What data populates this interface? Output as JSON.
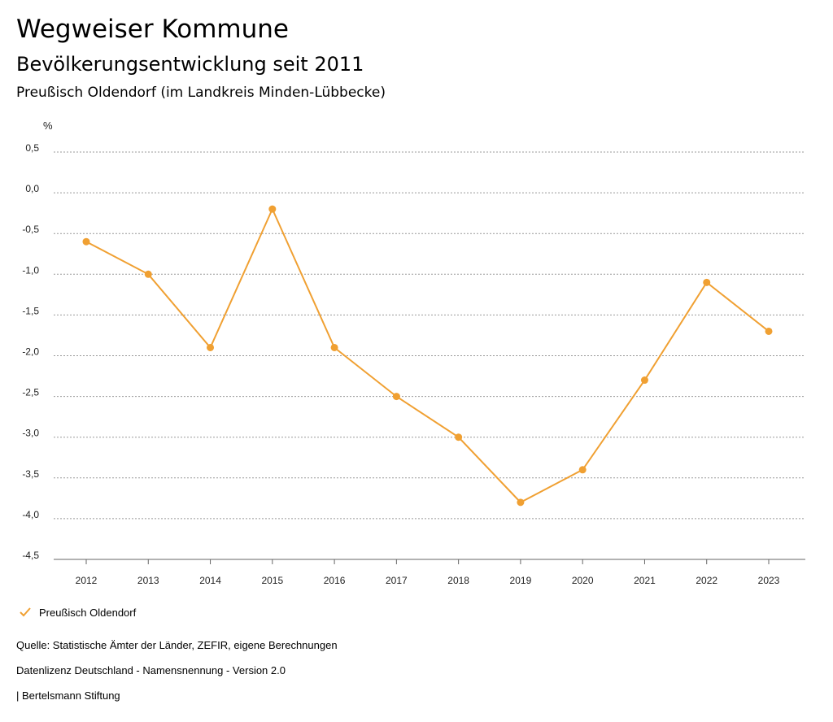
{
  "header": {
    "title": "Wegweiser Kommune",
    "subtitle": "Bevölkerungsentwicklung seit 2011",
    "region": "Preußisch Oldendorf (im Landkreis Minden-Lübbecke)"
  },
  "chart_data": {
    "type": "line",
    "ylabel": "%",
    "ylim": [
      -4.5,
      0.5
    ],
    "yticks": [
      0.5,
      0.0,
      -0.5,
      -1.0,
      -1.5,
      -2.0,
      -2.5,
      -3.0,
      -3.5,
      -4.0,
      -4.5
    ],
    "ytick_labels": [
      "0,5",
      "0,0",
      "-0,5",
      "-1,0",
      "-1,5",
      "-2,0",
      "-2,5",
      "-3,0",
      "-3,5",
      "-4,0",
      "-4,5"
    ],
    "categories": [
      "2012",
      "2013",
      "2014",
      "2015",
      "2016",
      "2017",
      "2018",
      "2019",
      "2020",
      "2021",
      "2022",
      "2023"
    ],
    "series": [
      {
        "name": "Preußisch Oldendorf",
        "values": [
          -0.6,
          -1.0,
          -1.9,
          -0.2,
          -1.9,
          -2.5,
          -3.0,
          -3.8,
          -3.4,
          -2.3,
          -1.1,
          -1.7
        ]
      }
    ],
    "grid": true,
    "grid_style": "dotted horizontal",
    "legend_position": "bottom-left",
    "series_color": "#f0a032",
    "grid_color": "#999999"
  },
  "legend": {
    "label": "Preußisch Oldendorf"
  },
  "footer": {
    "source": "Quelle: Statistische Ämter der Länder, ZEFIR, eigene Berechnungen",
    "license": "Datenlizenz Deutschland - Namensnennung - Version 2.0",
    "publisher": "| Bertelsmann Stiftung"
  }
}
